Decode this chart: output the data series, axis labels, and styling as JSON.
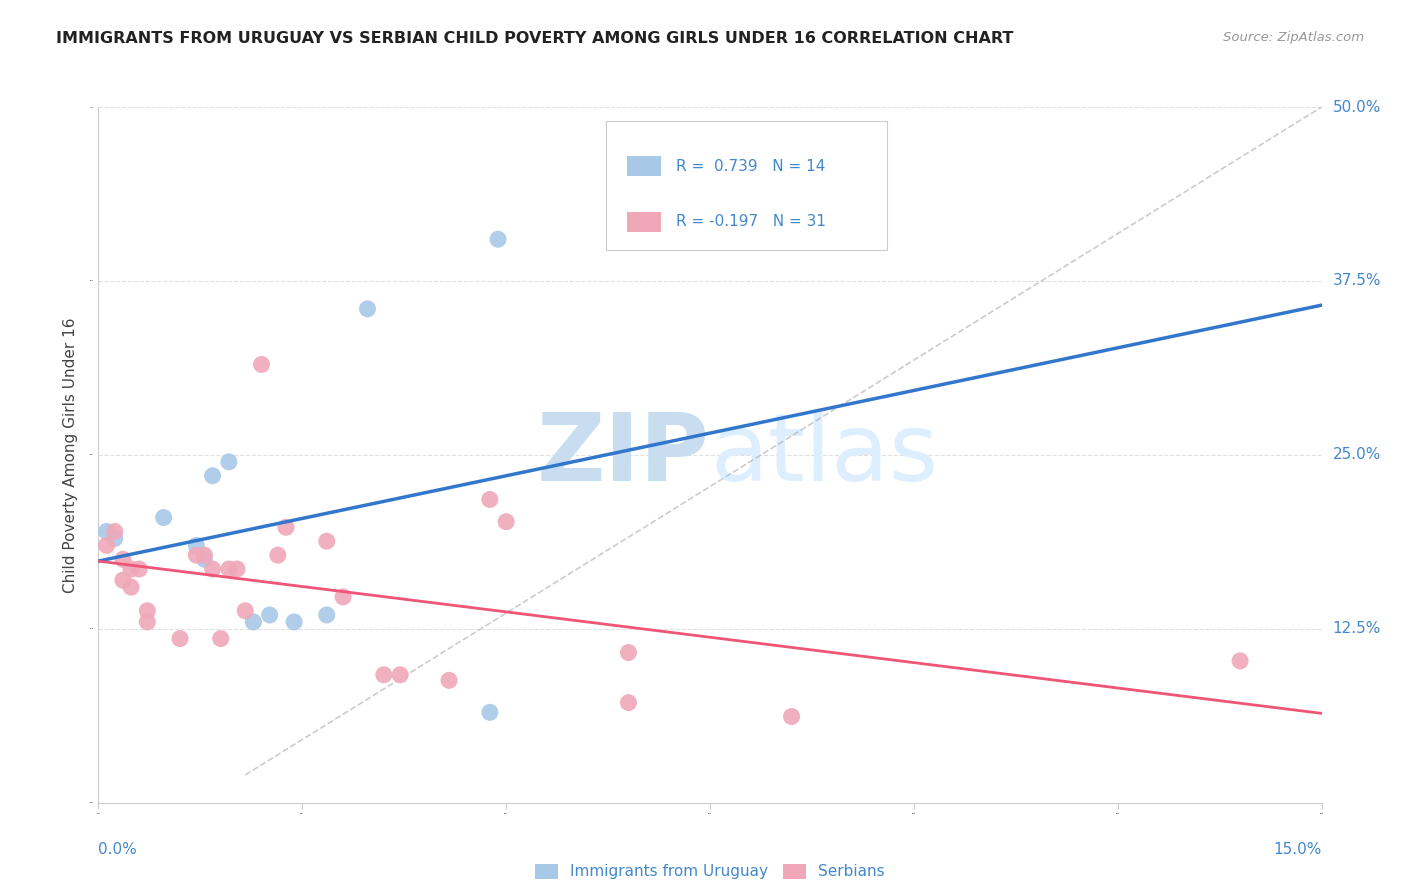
{
  "title": "IMMIGRANTS FROM URUGUAY VS SERBIAN CHILD POVERTY AMONG GIRLS UNDER 16 CORRELATION CHART",
  "source": "Source: ZipAtlas.com",
  "ylabel": "Child Poverty Among Girls Under 16",
  "legend_label1": "Immigrants from Uruguay",
  "legend_label2": "Serbians",
  "R1": 0.739,
  "N1": 14,
  "R2": -0.197,
  "N2": 31,
  "color_uruguay": "#a8c8e8",
  "color_serbian": "#f0a8b8",
  "color_line_uruguay": "#3377cc",
  "color_line_serbian": "#ee5577",
  "color_axis_labels": "#4488cc",
  "xlim": [
    0.0,
    0.15
  ],
  "ylim": [
    0.0,
    0.5
  ],
  "uruguay_points": [
    [
      0.001,
      0.195
    ],
    [
      0.002,
      0.19
    ],
    [
      0.008,
      0.205
    ],
    [
      0.012,
      0.185
    ],
    [
      0.013,
      0.175
    ],
    [
      0.014,
      0.235
    ],
    [
      0.016,
      0.245
    ],
    [
      0.019,
      0.13
    ],
    [
      0.021,
      0.135
    ],
    [
      0.024,
      0.13
    ],
    [
      0.028,
      0.135
    ],
    [
      0.033,
      0.355
    ],
    [
      0.048,
      0.065
    ],
    [
      0.049,
      0.405
    ]
  ],
  "serbian_points": [
    [
      0.001,
      0.185
    ],
    [
      0.002,
      0.195
    ],
    [
      0.003,
      0.175
    ],
    [
      0.003,
      0.16
    ],
    [
      0.004,
      0.168
    ],
    [
      0.004,
      0.155
    ],
    [
      0.005,
      0.168
    ],
    [
      0.006,
      0.138
    ],
    [
      0.006,
      0.13
    ],
    [
      0.01,
      0.118
    ],
    [
      0.012,
      0.178
    ],
    [
      0.013,
      0.178
    ],
    [
      0.014,
      0.168
    ],
    [
      0.015,
      0.118
    ],
    [
      0.016,
      0.168
    ],
    [
      0.017,
      0.168
    ],
    [
      0.018,
      0.138
    ],
    [
      0.02,
      0.315
    ],
    [
      0.022,
      0.178
    ],
    [
      0.023,
      0.198
    ],
    [
      0.028,
      0.188
    ],
    [
      0.03,
      0.148
    ],
    [
      0.035,
      0.092
    ],
    [
      0.037,
      0.092
    ],
    [
      0.043,
      0.088
    ],
    [
      0.048,
      0.218
    ],
    [
      0.05,
      0.202
    ],
    [
      0.065,
      0.108
    ],
    [
      0.065,
      0.072
    ],
    [
      0.085,
      0.062
    ],
    [
      0.14,
      0.102
    ]
  ],
  "watermark_zip": "ZIP",
  "watermark_atlas": "atlas",
  "watermark_color": "#ddeeff",
  "background_color": "#ffffff",
  "grid_color": "#e0e0e0"
}
